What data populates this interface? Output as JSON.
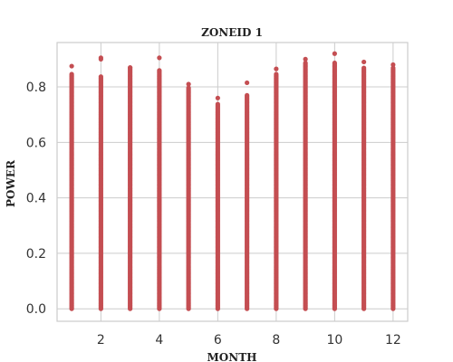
{
  "chart_data": {
    "type": "scatter",
    "title": "ZONEID 1",
    "xlabel": "MONTH",
    "ylabel": "POWER",
    "xlim": [
      0.5,
      12.5
    ],
    "ylim": [
      -0.045,
      0.96
    ],
    "xticks": [
      2,
      4,
      6,
      8,
      10,
      12
    ],
    "yticks": [
      0.0,
      0.2,
      0.4,
      0.6,
      0.8
    ],
    "ytick_labels": [
      "0.0",
      "0.2",
      "0.4",
      "0.6",
      "0.8"
    ],
    "grid": true,
    "marker_color": "#c44e52",
    "series": [
      {
        "columns": [
          {
            "month": 1,
            "range": [
              0.0,
              0.85
            ],
            "max_points": [
              0.875
            ]
          },
          {
            "month": 2,
            "range": [
              0.0,
              0.84
            ],
            "max_points": [
              0.905,
              0.9
            ]
          },
          {
            "month": 3,
            "range": [
              0.0,
              0.87
            ],
            "max_points": [
              0.87
            ]
          },
          {
            "month": 4,
            "range": [
              0.0,
              0.86
            ],
            "max_points": [
              0.905
            ]
          },
          {
            "month": 5,
            "range": [
              0.0,
              0.8
            ],
            "max_points": [
              0.81
            ]
          },
          {
            "month": 6,
            "range": [
              0.0,
              0.74
            ],
            "max_points": [
              0.76
            ]
          },
          {
            "month": 7,
            "range": [
              0.0,
              0.77
            ],
            "max_points": [
              0.815
            ]
          },
          {
            "month": 8,
            "range": [
              0.0,
              0.85
            ],
            "max_points": [
              0.865
            ]
          },
          {
            "month": 9,
            "range": [
              0.0,
              0.89
            ],
            "max_points": [
              0.9
            ]
          },
          {
            "month": 10,
            "range": [
              0.0,
              0.89
            ],
            "max_points": [
              0.92
            ]
          },
          {
            "month": 11,
            "range": [
              0.0,
              0.87
            ],
            "max_points": [
              0.89
            ]
          },
          {
            "month": 12,
            "range": [
              0.0,
              0.87
            ],
            "max_points": [
              0.88
            ]
          }
        ]
      }
    ]
  }
}
